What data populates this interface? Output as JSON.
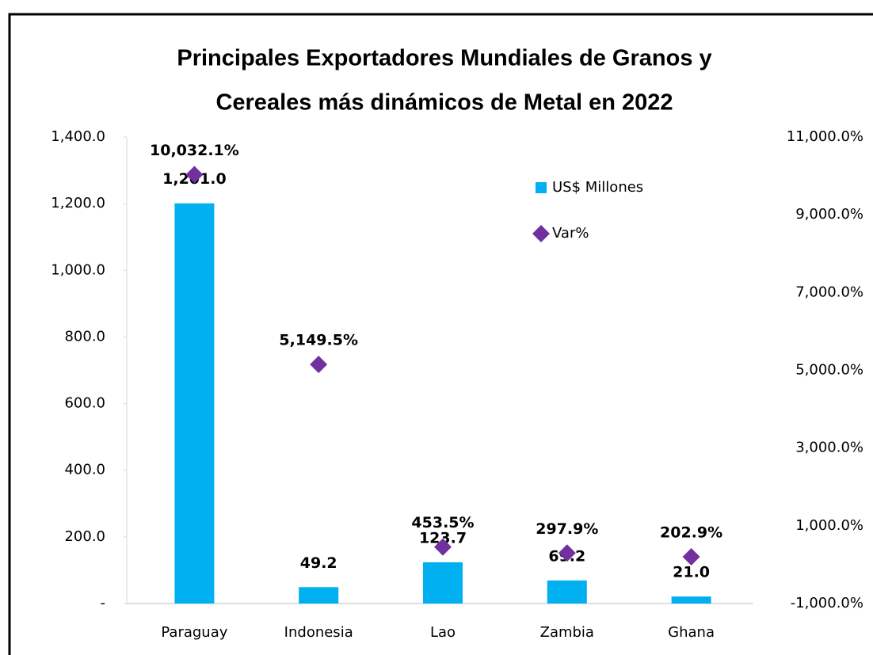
{
  "chart_data": {
    "type": "bar",
    "title": [
      "Principales Exportadores Mundiales de Granos y",
      "Cereales más dinámicos de Metal en 2022"
    ],
    "categories": [
      "Paraguay",
      "Indonesia",
      "Lao",
      "Zambia",
      "Ghana"
    ],
    "series": [
      {
        "name": "US$ Millones",
        "color": "#00b0f0",
        "type": "bar",
        "values": [
          1201.0,
          49.2,
          123.7,
          69.2,
          21.0
        ],
        "value_labels": [
          "1,201.0",
          "49.2",
          "123.7",
          "69.2",
          "21.0"
        ]
      },
      {
        "name": "Var%",
        "color": "#7030a0",
        "type": "scatter",
        "axis": "y2",
        "values": [
          10032.1,
          5149.5,
          453.5,
          297.9,
          202.9
        ],
        "value_labels": [
          "10,032.1%",
          "5,149.5%",
          "453.5%",
          "297.9%",
          "202.9%"
        ]
      }
    ],
    "ylim": [
      0,
      1400
    ],
    "yticks": [
      {
        "value": 0,
        "label": "-"
      },
      {
        "value": 200,
        "label": "200.0"
      },
      {
        "value": 400,
        "label": "400.0"
      },
      {
        "value": 600,
        "label": "600.0"
      },
      {
        "value": 800,
        "label": "800.0"
      },
      {
        "value": 1000,
        "label": "1,000.0"
      },
      {
        "value": 1200,
        "label": "1,200.0"
      },
      {
        "value": 1400,
        "label": "1,400.0"
      }
    ],
    "y2lim": [
      -1000,
      11000
    ],
    "y2ticks": [
      {
        "value": -1000,
        "label": "-1,000.0%"
      },
      {
        "value": 1000,
        "label": "1,000.0%"
      },
      {
        "value": 3000,
        "label": "3,000.0%"
      },
      {
        "value": 5000,
        "label": "5,000.0%"
      },
      {
        "value": 7000,
        "label": "7,000.0%"
      },
      {
        "value": 9000,
        "label": "9,000.0%"
      },
      {
        "value": 11000,
        "label": "11,000.0%"
      }
    ],
    "legend": "upper-right",
    "grid": false
  }
}
